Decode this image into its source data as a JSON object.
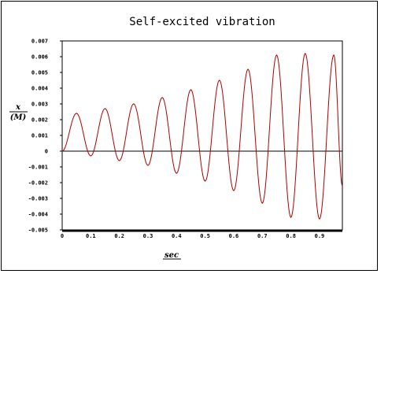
{
  "chart_data": {
    "type": "line",
    "title": "Self-excited vibration",
    "xlabel": "sec",
    "ylabel_top": "x",
    "ylabel_bottom": "(M)",
    "xlim": [
      0,
      0.98
    ],
    "ylim": [
      -0.005,
      0.007
    ],
    "x_ticks": [
      "0",
      "0.1",
      "0.2",
      "0.3",
      "0.4",
      "0.5",
      "0.6",
      "0.7",
      "0.8",
      "0.9"
    ],
    "y_ticks": [
      "0.007",
      "0.006",
      "0.005",
      "0.004",
      "0.003",
      "0.002",
      "0.001",
      "0",
      "-0.001",
      "-0.002",
      "-0.003",
      "-0.004",
      "-0.005"
    ],
    "grid": false,
    "series": [
      {
        "color": "#b00000",
        "x": [
          0,
          0.05,
          0.1,
          0.15,
          0.2,
          0.25,
          0.3,
          0.35,
          0.4,
          0.45,
          0.5,
          0.55,
          0.6,
          0.65,
          0.7,
          0.75,
          0.8,
          0.85,
          0.9,
          0.95,
          0.98
        ],
        "y": [
          0,
          0.0024,
          -0.0003,
          0.0027,
          -0.0006,
          0.003,
          -0.0009,
          0.0034,
          -0.0014,
          0.0039,
          -0.0019,
          0.0045,
          -0.0025,
          0.0052,
          -0.0033,
          0.0061,
          -0.0042,
          0.0062,
          -0.0043,
          0.0061,
          -0.0022
        ]
      }
    ]
  }
}
